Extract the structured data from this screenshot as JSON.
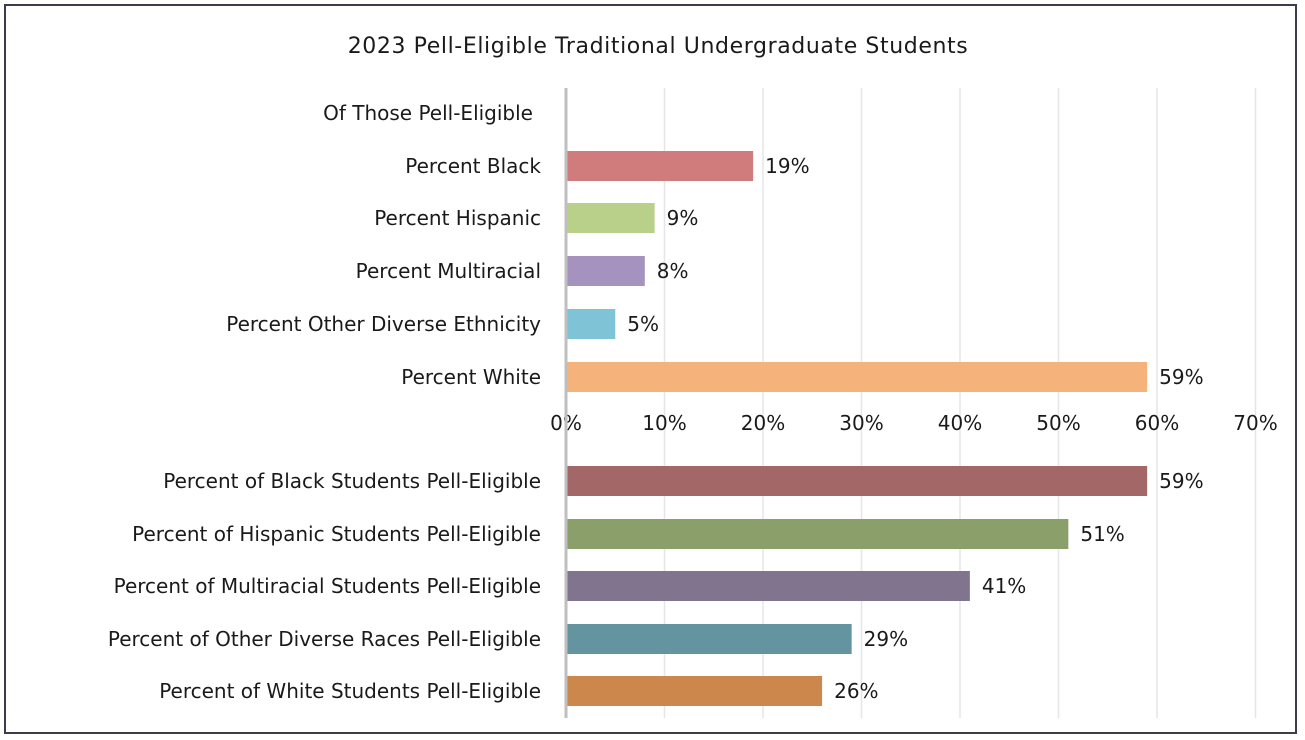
{
  "chart_data": {
    "type": "bar",
    "orientation": "horizontal",
    "title": "2023 Pell-Eligible Traditional Undergraduate Students",
    "xlim": [
      0,
      70
    ],
    "x_ticks": [
      "0%",
      "10%",
      "20%",
      "30%",
      "40%",
      "50%",
      "60%",
      "70%"
    ],
    "grid": true,
    "legend": "none",
    "groups": [
      {
        "header": "Of Those Pell-Eligible",
        "bars": [
          {
            "label": "Percent Black",
            "value": 19,
            "value_label": "19%",
            "color": "#d07c7c"
          },
          {
            "label": "Percent Hispanic",
            "value": 9,
            "value_label": "9%",
            "color": "#b9d08a"
          },
          {
            "label": "Percent Multiracial",
            "value": 8,
            "value_label": "8%",
            "color": "#a592be"
          },
          {
            "label": "Percent Other Diverse Ethnicity",
            "value": 5,
            "value_label": "5%",
            "color": "#7fc3d6"
          },
          {
            "label": "Percent White",
            "value": 59,
            "value_label": "59%",
            "color": "#f6b27b"
          }
        ]
      },
      {
        "header": "",
        "bars": [
          {
            "label": "Percent of Black Students Pell-Eligible",
            "value": 59,
            "value_label": "59%",
            "color": "#a26766"
          },
          {
            "label": "Percent of Hispanic Students Pell-Eligible",
            "value": 51,
            "value_label": "51%",
            "color": "#8b9f6b"
          },
          {
            "label": "Percent of Multiracial Students Pell-Eligible",
            "value": 41,
            "value_label": "41%",
            "color": "#80748f"
          },
          {
            "label": "Percent of Other Diverse Races Pell-Eligible",
            "value": 29,
            "value_label": "29%",
            "color": "#64949f"
          },
          {
            "label": "Percent of White Students Pell-Eligible",
            "value": 26,
            "value_label": "26%",
            "color": "#cc874c"
          }
        ]
      }
    ]
  }
}
